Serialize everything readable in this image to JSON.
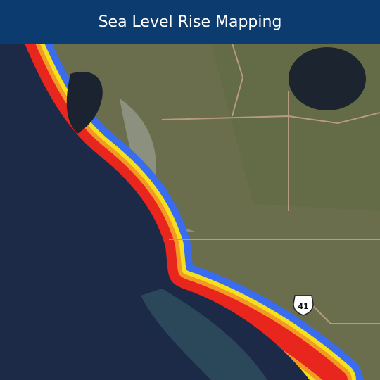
{
  "header": {
    "title": "Sea Level Rise Mapping"
  },
  "map": {
    "route_shield": "41"
  }
}
